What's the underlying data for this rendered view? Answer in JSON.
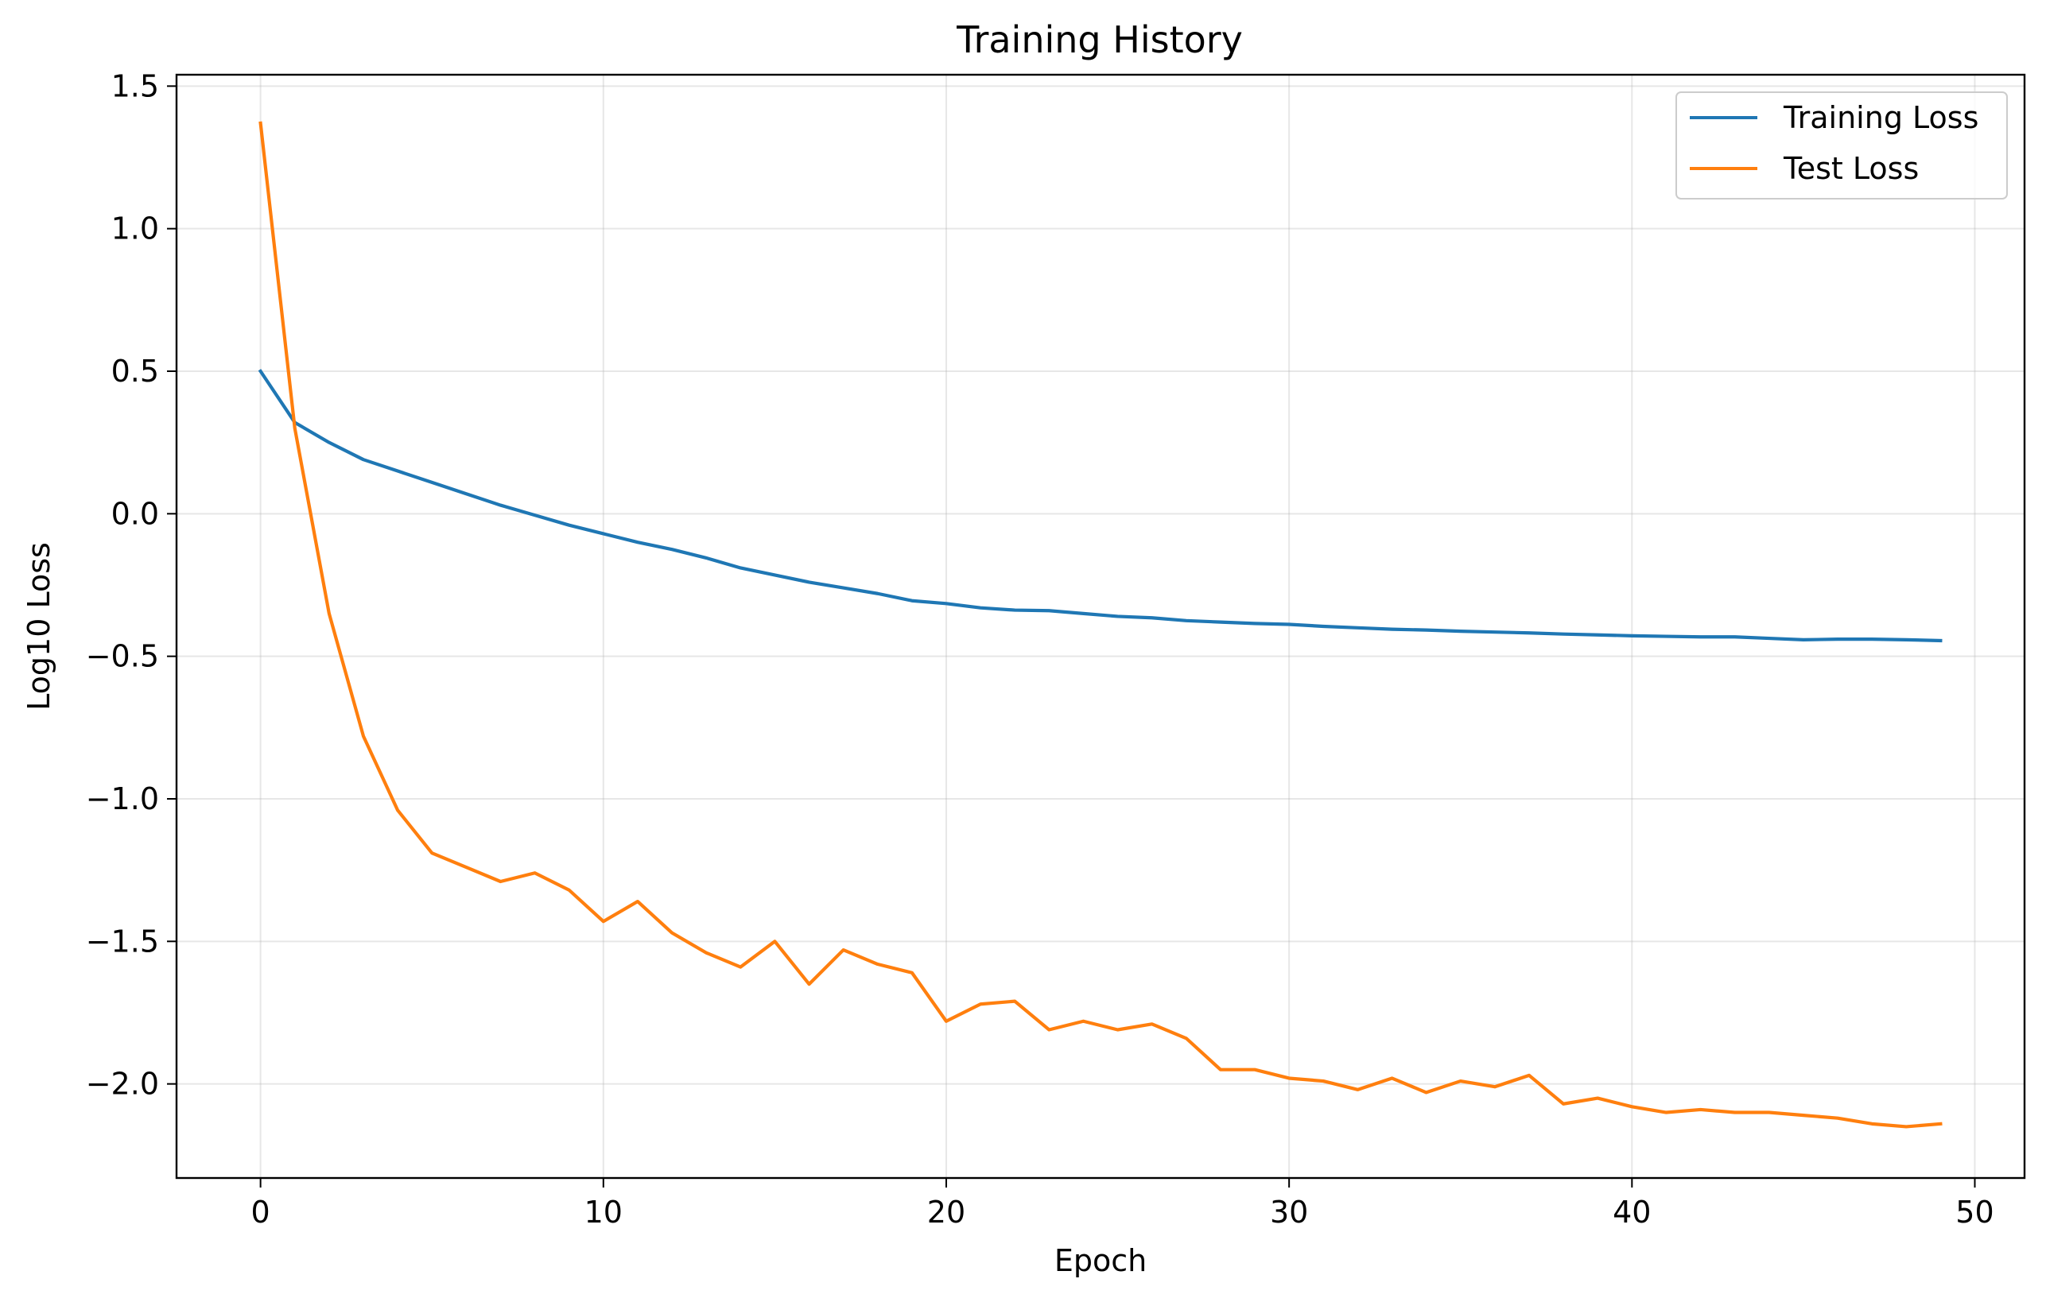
{
  "chart_data": {
    "type": "line",
    "title": "Training History",
    "xlabel": "Epoch",
    "ylabel": "Log10 Loss",
    "xlim": [
      -2.45,
      51.45
    ],
    "ylim": [
      -2.33,
      1.54
    ],
    "xticks": [
      0,
      10,
      20,
      30,
      40,
      50
    ],
    "xtick_labels": [
      "0",
      "10",
      "20",
      "30",
      "40",
      "50"
    ],
    "yticks": [
      -2.0,
      -1.5,
      -1.0,
      -0.5,
      0.0,
      0.5,
      1.0,
      1.5
    ],
    "ytick_labels": [
      "−2.0",
      "−1.5",
      "−1.0",
      "−0.5",
      "0.0",
      "0.5",
      "1.0",
      "1.5"
    ],
    "grid": true,
    "legend_position": "top-right",
    "x": [
      0,
      1,
      2,
      3,
      4,
      5,
      6,
      7,
      8,
      9,
      10,
      11,
      12,
      13,
      14,
      15,
      16,
      17,
      18,
      19,
      20,
      21,
      22,
      23,
      24,
      25,
      26,
      27,
      28,
      29,
      30,
      31,
      32,
      33,
      34,
      35,
      36,
      37,
      38,
      39,
      40,
      41,
      42,
      43,
      44,
      45,
      46,
      47,
      48,
      49
    ],
    "series": [
      {
        "name": "Training Loss",
        "color": "#1f77b4",
        "values": [
          0.5,
          0.32,
          0.25,
          0.19,
          0.15,
          0.11,
          0.07,
          0.03,
          -0.005,
          -0.04,
          -0.07,
          -0.1,
          -0.125,
          -0.155,
          -0.19,
          -0.215,
          -0.24,
          -0.26,
          -0.28,
          -0.305,
          -0.315,
          -0.33,
          -0.338,
          -0.34,
          -0.35,
          -0.36,
          -0.365,
          -0.375,
          -0.38,
          -0.385,
          -0.388,
          -0.395,
          -0.4,
          -0.405,
          -0.408,
          -0.412,
          -0.415,
          -0.418,
          -0.422,
          -0.425,
          -0.428,
          -0.43,
          -0.432,
          -0.432,
          -0.437,
          -0.442,
          -0.44,
          -0.44,
          -0.442,
          -0.445
        ]
      },
      {
        "name": "Test Loss",
        "color": "#ff7f0e",
        "values": [
          1.37,
          0.3,
          -0.35,
          -0.78,
          -1.04,
          -1.19,
          -1.24,
          -1.29,
          -1.26,
          -1.32,
          -1.43,
          -1.36,
          -1.47,
          -1.54,
          -1.59,
          -1.5,
          -1.65,
          -1.53,
          -1.58,
          -1.61,
          -1.78,
          -1.72,
          -1.71,
          -1.81,
          -1.78,
          -1.81,
          -1.79,
          -1.84,
          -1.95,
          -1.95,
          -1.98,
          -1.99,
          -2.02,
          -1.98,
          -2.03,
          -1.99,
          -2.01,
          -1.97,
          -2.07,
          -2.05,
          -2.08,
          -2.1,
          -2.09,
          -2.1,
          -2.1,
          -2.11,
          -2.12,
          -2.14,
          -2.15,
          -2.14
        ]
      }
    ]
  }
}
